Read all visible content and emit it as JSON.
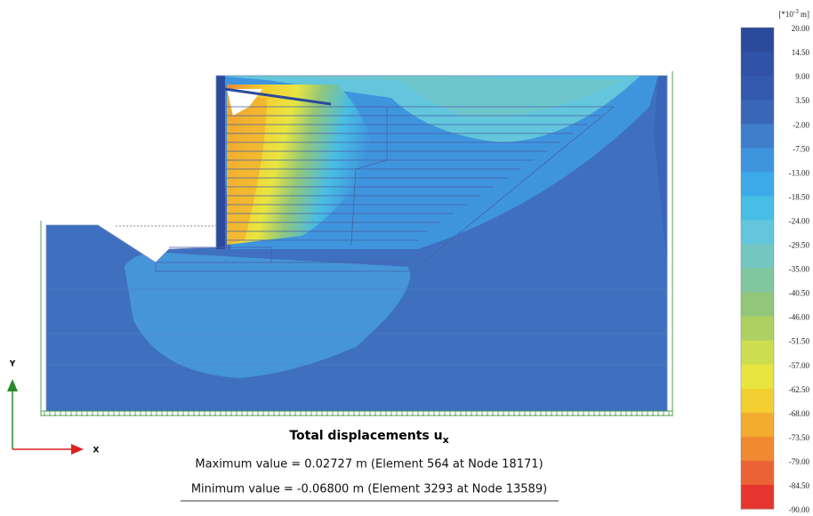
{
  "plot": {
    "title": "Total displacements u",
    "title_subscript": "x",
    "max_line": "Maximum value = 0.02727 m (Element 564 at Node 18171)",
    "min_line": "Minimum value = -0.06800 m (Element 3293 at Node 13589)",
    "axis_y": "Y",
    "axis_x": "X"
  },
  "legend": {
    "unit_prefix": "[*10",
    "unit_exponent": "-3",
    "unit_suffix": " m]",
    "labels": [
      "20.00",
      "14.50",
      "9.00",
      "3.50",
      "-2.00",
      "-7.50",
      "-13.00",
      "-18.50",
      "-24.00",
      "-29.50",
      "-35.00",
      "-40.50",
      "-46.00",
      "-51.50",
      "-57.00",
      "-62.50",
      "-68.00",
      "-73.50",
      "-79.00",
      "-84.50",
      "-90.00"
    ],
    "colors": [
      "#2c4a9c",
      "#2f52a6",
      "#3359ae",
      "#3a66b8",
      "#3e7ecb",
      "#3f95dd",
      "#3caae8",
      "#48bde5",
      "#63c6dc",
      "#74c7c1",
      "#80c69e",
      "#92c77a",
      "#aed062",
      "#cddd50",
      "#e8e540",
      "#f3cf31",
      "#f2ad2f",
      "#ef8a33",
      "#eb6335",
      "#e6352f"
    ]
  }
}
